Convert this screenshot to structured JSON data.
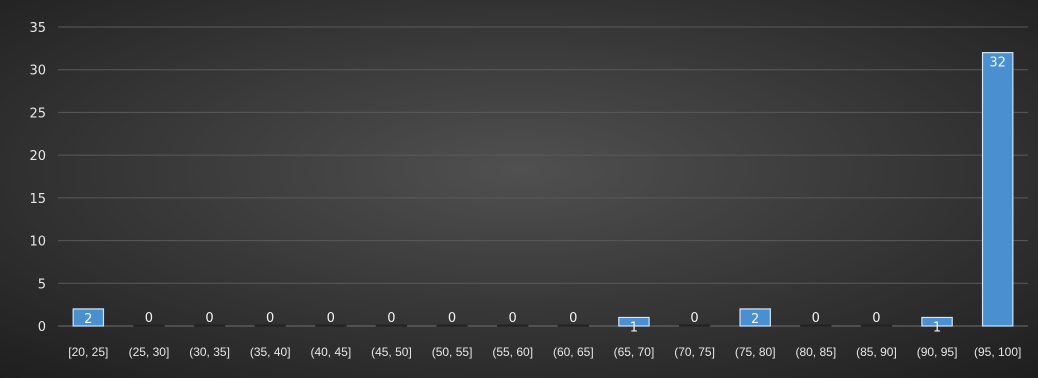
{
  "chart_data": {
    "type": "bar",
    "title": "",
    "xlabel": "",
    "ylabel": "",
    "categories": [
      "[20, 25]",
      "(25, 30]",
      "(30, 35]",
      "(35, 40]",
      "(40, 45]",
      "(45, 50]",
      "(50, 55]",
      "(55, 60]",
      "(60, 65]",
      "(65, 70]",
      "(70, 75]",
      "(75, 80]",
      "(80, 85]",
      "(85, 90]",
      "(90, 95]",
      "(95, 100]"
    ],
    "values": [
      2,
      0,
      0,
      0,
      0,
      0,
      0,
      0,
      0,
      1,
      0,
      2,
      0,
      0,
      1,
      32
    ],
    "ylim": [
      0,
      35
    ],
    "yticks": [
      "0",
      "5",
      "10",
      "15",
      "20",
      "25",
      "30",
      "35"
    ],
    "grid": true,
    "legend": "none",
    "data_labels": true,
    "colors": {
      "bar": "#4a90d0",
      "bar_edge": "#cfe4f7",
      "background_center": "#505050",
      "background_edge": "#1e1e1e",
      "gridline": "#5a5a5a",
      "text": "#e6e6e6"
    }
  }
}
